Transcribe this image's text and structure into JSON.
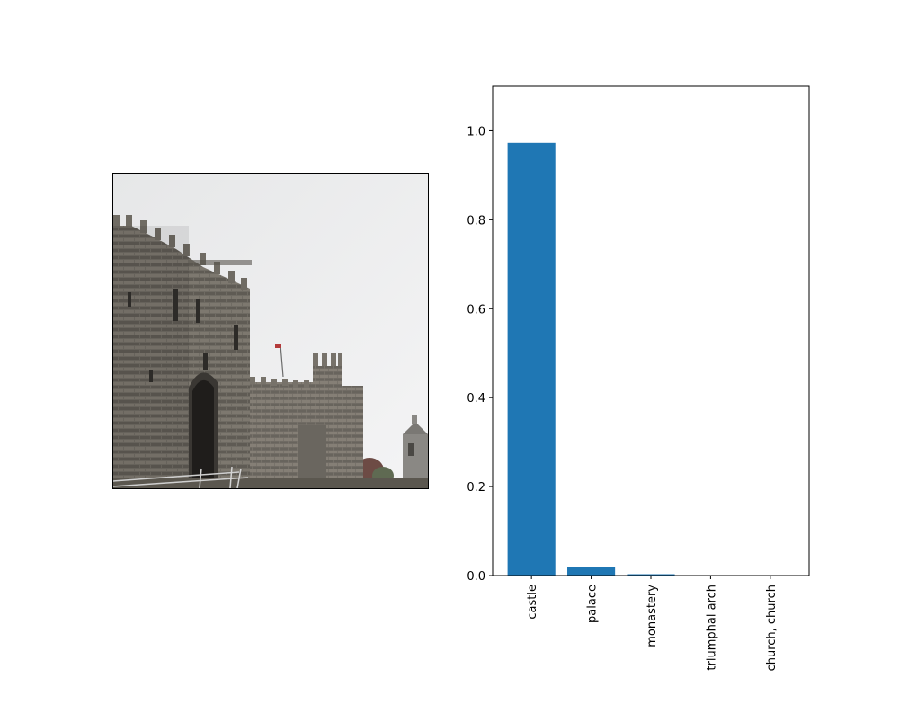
{
  "photo": {
    "subject": "castle-photo"
  },
  "chart_data": {
    "type": "bar",
    "categories": [
      "castle",
      "palace",
      "monastery",
      "triumphal arch",
      "church, church"
    ],
    "values": [
      0.973,
      0.02,
      0.003,
      0.001,
      0.001
    ],
    "ylim": [
      0,
      1.1
    ],
    "yticks": [
      "0.0",
      "0.2",
      "0.4",
      "0.6",
      "0.8",
      "1.0"
    ],
    "bar_color": "#1f77b4",
    "grid": false,
    "title": "",
    "xlabel": "",
    "ylabel": ""
  }
}
